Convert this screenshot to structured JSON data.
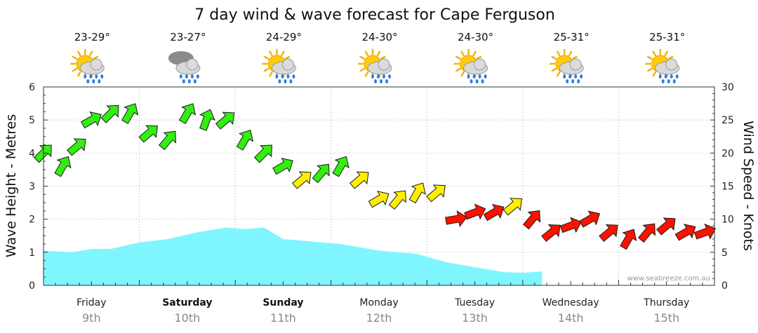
{
  "chart_data": {
    "type": "line",
    "title": "7 day wind & wave forecast for Cape Ferguson",
    "ylabel_left": "Wave Height - Metres",
    "ylabel_right": "Wind Speed - Knots",
    "ylim_left": [
      0,
      6
    ],
    "ylim_right": [
      0,
      30
    ],
    "yticks_left": [
      "0",
      "1",
      "2",
      "3",
      "4",
      "5",
      "6"
    ],
    "yticks_right": [
      "0",
      "5",
      "10",
      "15",
      "20",
      "25",
      "30"
    ],
    "days": [
      {
        "name": "Friday",
        "date": "9th",
        "bold": false,
        "temp": "23-29°",
        "icon": "sun-cloud-rain-icon"
      },
      {
        "name": "Saturday",
        "date": "10th",
        "bold": true,
        "temp": "23-27°",
        "icon": "rain-cloud-icon"
      },
      {
        "name": "Sunday",
        "date": "11th",
        "bold": true,
        "temp": "24-29°",
        "icon": "sun-cloud-rain-icon"
      },
      {
        "name": "Monday",
        "date": "12th",
        "bold": false,
        "temp": "24-30°",
        "icon": "sun-cloud-rain-icon"
      },
      {
        "name": "Tuesday",
        "date": "13th",
        "bold": false,
        "temp": "24-30°",
        "icon": "sun-cloud-rain-icon"
      },
      {
        "name": "Wednesday",
        "date": "14th",
        "bold": false,
        "temp": "25-31°",
        "icon": "sun-cloud-rain-icon"
      },
      {
        "name": "Thursday",
        "date": "15th",
        "bold": false,
        "temp": "25-31°",
        "icon": "sun-cloud-rain-icon"
      }
    ],
    "wave_series": {
      "name": "Wave Height",
      "unit": "m",
      "color": "#7ff6ff",
      "x_days": [
        0,
        0.3,
        0.5,
        0.7,
        1.0,
        1.3,
        1.6,
        1.9,
        2.1,
        2.3,
        2.5,
        2.7,
        2.9,
        3.1,
        3.5,
        3.9,
        4.2,
        4.5,
        4.8,
        5.0,
        5.2
      ],
      "values": [
        1.05,
        1.0,
        1.1,
        1.1,
        1.3,
        1.4,
        1.6,
        1.75,
        1.7,
        1.75,
        1.4,
        1.35,
        1.3,
        1.25,
        1.05,
        0.95,
        0.7,
        0.55,
        0.4,
        0.38,
        0.42
      ]
    },
    "wind_series": {
      "name": "Wind Speed",
      "unit": "knots",
      "x_days": [
        0.0,
        0.2,
        0.35,
        0.5,
        0.7,
        0.9,
        1.1,
        1.3,
        1.5,
        1.7,
        1.9,
        2.1,
        2.3,
        2.5,
        2.7,
        2.9,
        3.1,
        3.3,
        3.5,
        3.7,
        3.9,
        4.1,
        4.3,
        4.5,
        4.7,
        4.9,
        5.1,
        5.3,
        5.5,
        5.7,
        5.9,
        6.1,
        6.3,
        6.5,
        6.7,
        6.9
      ],
      "values": [
        20,
        18,
        21,
        25,
        26,
        26,
        23,
        22,
        26,
        25,
        25,
        22,
        20,
        18,
        16,
        17,
        18,
        16,
        13,
        13,
        14,
        14,
        10,
        11,
        11,
        12,
        10,
        8,
        9,
        10,
        8,
        7,
        8,
        9,
        8,
        8
      ],
      "direction_deg": [
        315,
        300,
        320,
        330,
        315,
        300,
        320,
        310,
        300,
        290,
        320,
        300,
        315,
        330,
        320,
        310,
        300,
        320,
        330,
        310,
        300,
        320,
        350,
        340,
        330,
        320,
        310,
        320,
        340,
        330,
        320,
        300,
        310,
        320,
        330,
        340
      ]
    },
    "wind_color_scale": [
      {
        "min": 17,
        "color": "#33ee11"
      },
      {
        "min": 12,
        "color": "#ffee00"
      },
      {
        "min": 0,
        "color": "#ff1100"
      }
    ],
    "watermark": "www.seabreeze.com.au"
  }
}
